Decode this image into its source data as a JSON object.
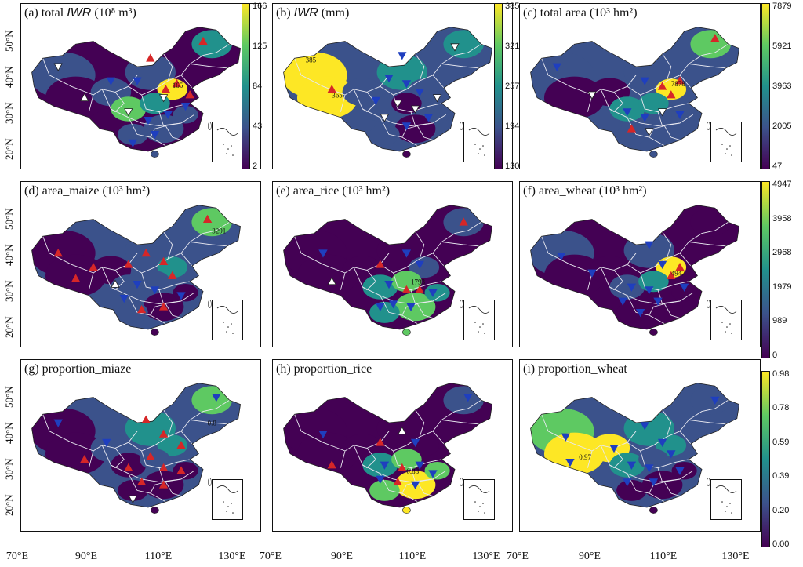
{
  "figure": {
    "latitude_ticks": [
      "20°N",
      "30°N",
      "40°N",
      "50°N"
    ],
    "longitude_ticks": [
      "70°E",
      "90°E",
      "110°E",
      "130°E"
    ],
    "colormap": [
      "#440154",
      "#3b528b",
      "#21918c",
      "#5ec962",
      "#fde725"
    ],
    "marker_colors": {
      "increase": "#d62728",
      "decrease": "#1f3fbf",
      "insignificant": "#ffffff"
    }
  },
  "panels": [
    {
      "id": "a",
      "title_prefix": "(a) total ",
      "title_var": "IWR",
      "title_suffix": " (10⁸ m³)",
      "colorbar_ticks": [
        "166",
        "125",
        "84",
        "43",
        "2"
      ]
    },
    {
      "id": "b",
      "title_prefix": "(b) ",
      "title_var": "IWR",
      "title_suffix": " (mm)",
      "colorbar_ticks": [
        "385",
        "321",
        "257",
        "194",
        "130"
      ]
    },
    {
      "id": "c",
      "title_prefix": "(c)  total area (10³ hm²)",
      "title_var": "",
      "title_suffix": "",
      "colorbar_ticks": [
        "7879",
        "5921",
        "3963",
        "2005",
        "47"
      ]
    },
    {
      "id": "d",
      "title_prefix": "(d) area_maize (10³ hm²)",
      "title_var": "",
      "title_suffix": "",
      "colorbar_ticks": []
    },
    {
      "id": "e",
      "title_prefix": "(e) area_rice (10³ hm²)",
      "title_var": "",
      "title_suffix": "",
      "colorbar_ticks": []
    },
    {
      "id": "f",
      "title_prefix": "(f) area_wheat (10³ hm²)",
      "title_var": "",
      "title_suffix": "",
      "colorbar_ticks": [
        "4947",
        "3958",
        "2968",
        "1979",
        "989",
        "0"
      ]
    },
    {
      "id": "g",
      "title_prefix": "(g) proportion_miaze",
      "title_var": "",
      "title_suffix": "",
      "colorbar_ticks": []
    },
    {
      "id": "h",
      "title_prefix": "(h) proportion_rice",
      "title_var": "",
      "title_suffix": "",
      "colorbar_ticks": []
    },
    {
      "id": "i",
      "title_prefix": "(i) proportion_wheat",
      "title_var": "",
      "title_suffix": "",
      "colorbar_ticks": [
        "0.98",
        "0.78",
        "0.59",
        "0.39",
        "0.20",
        "0.00"
      ]
    }
  ],
  "annotations": {
    "a": [
      "165"
    ],
    "b": [
      "385",
      "365"
    ],
    "c": [
      "7878"
    ],
    "d": [
      "3291"
    ],
    "e": [
      "1793"
    ],
    "f": [
      "4947"
    ],
    "g": [
      "0.8"
    ],
    "h": [
      "0.88"
    ],
    "i": [
      "0.97"
    ]
  }
}
